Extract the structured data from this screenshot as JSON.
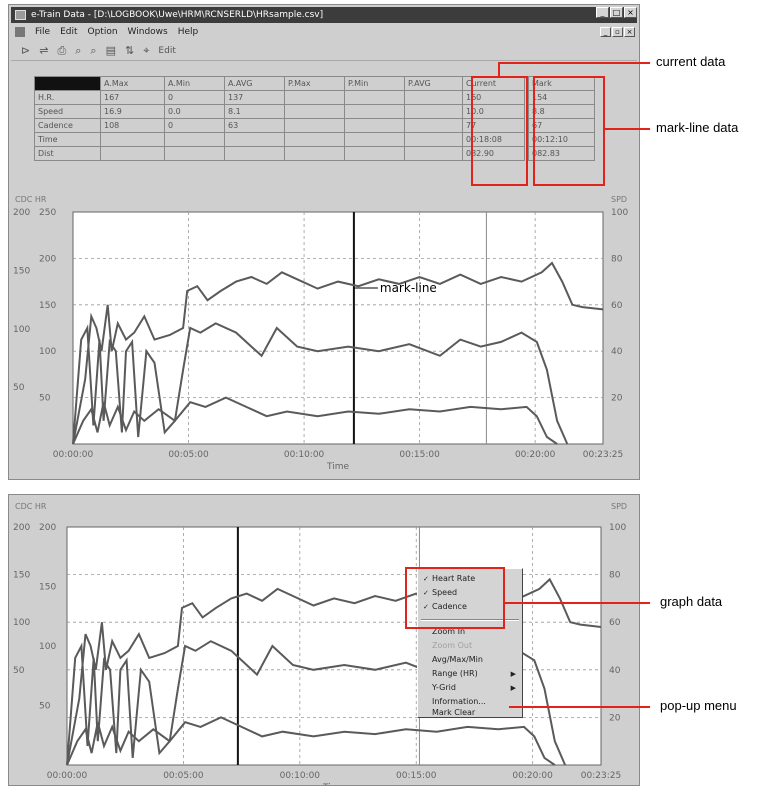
{
  "window": {
    "title": "e-Train Data - [D:\\LOGBOOK\\Uwe\\HRM\\RCNSERLD\\HRsample.csv]",
    "title_buttons": [
      "_",
      "□",
      "×"
    ],
    "mdi_buttons": [
      "_",
      "▫",
      "×"
    ]
  },
  "menu": [
    "File",
    "Edit",
    "Option",
    "Windows",
    "Help"
  ],
  "toolbar": {
    "icons": [
      "open-icon",
      "save-icon",
      "print-icon",
      "zoom-in-icon",
      "zoom-out-icon",
      "copy-icon",
      "graph-icon",
      "find-icon"
    ],
    "edit_label": "Edit"
  },
  "stats_table": {
    "columns": [
      "A.Max",
      "A.Min",
      "A.AVG",
      "P.Max",
      "P.Min",
      "P.AVG",
      "Current",
      "Mark"
    ],
    "rows": [
      {
        "label": "H.R.",
        "cells": [
          "167",
          "0",
          "137",
          "",
          "",
          "",
          "160",
          "154"
        ]
      },
      {
        "label": "Speed",
        "cells": [
          "16.9",
          "0.0",
          "8.1",
          "",
          "",
          "",
          "10.0",
          "8.8"
        ]
      },
      {
        "label": "Cadence",
        "cells": [
          "108",
          "0",
          "63",
          "",
          "",
          "",
          "77",
          "67"
        ]
      },
      {
        "label": "Time",
        "cells": [
          "",
          "",
          "",
          "",
          "",
          "",
          "00:18:08",
          "00:12:10"
        ]
      },
      {
        "label": "Dist",
        "cells": [
          "",
          "",
          "",
          "",
          "",
          "",
          "082.90",
          "082.83"
        ]
      }
    ]
  },
  "chart1": {
    "left_axis_title": "CDC HR",
    "right_axis_title": "SPD",
    "left_outer_ticks": [
      "200",
      "150",
      "100",
      "50"
    ],
    "left_inner_ticks": [
      "250",
      "200",
      "150",
      "100",
      "50"
    ],
    "right_ticks": [
      "100",
      "80",
      "60",
      "40",
      "20"
    ],
    "x_ticks": [
      "00:00:00",
      "00:05:00",
      "00:10:00",
      "00:15:00",
      "00:20:00",
      "00:23:25"
    ],
    "xlabel": "Time",
    "mark_line_label": "mark-line"
  },
  "chart2": {
    "left_axis_title": "CDC HR",
    "right_axis_title": "SPD",
    "left_outer_ticks": [
      "200",
      "150",
      "100",
      "50"
    ],
    "left_inner_ticks": [
      "200",
      "150",
      "100",
      "50"
    ],
    "right_ticks": [
      "100",
      "80",
      "60",
      "40",
      "20"
    ],
    "x_ticks": [
      "00:00:00",
      "00:05:00",
      "00:10:00",
      "00:15:00",
      "00:20:00",
      "00:23:25"
    ],
    "xlabel": "Time"
  },
  "popup_menu": {
    "graph_items": [
      "Heart Rate",
      "Speed",
      "Cadence"
    ],
    "check_mark": "✓",
    "items": [
      "Zoom In",
      "Zoom Out",
      "Avg/Max/Min",
      "Range (HR)",
      "Y-Grid",
      "Information...",
      "Mark Clear"
    ],
    "submenu_arrow": "▶"
  },
  "annotations": {
    "current_data": "current data",
    "mark_line_data": "mark-line data",
    "graph_data": "graph data",
    "popup_menu": "pop-up menu"
  },
  "colors": {
    "callout": "#e2231a",
    "series": "#5a5a5a",
    "mark_line": "#111111",
    "title_bar": "#3c3c3c"
  }
}
